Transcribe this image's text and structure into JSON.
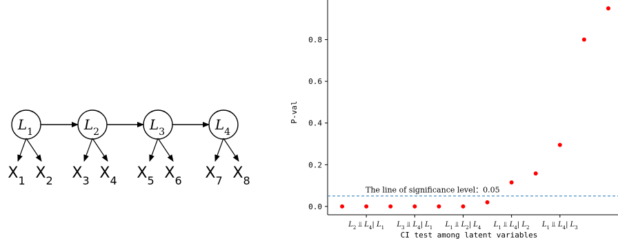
{
  "diagram": {
    "latent_nodes": [
      {
        "label": "L",
        "sub": "1"
      },
      {
        "label": "L",
        "sub": "2"
      },
      {
        "label": "L",
        "sub": "3"
      },
      {
        "label": "L",
        "sub": "4"
      }
    ],
    "observed_nodes": [
      {
        "label": "X",
        "sub": "1"
      },
      {
        "label": "X",
        "sub": "2"
      },
      {
        "label": "X",
        "sub": "3"
      },
      {
        "label": "X",
        "sub": "4"
      },
      {
        "label": "X",
        "sub": "5"
      },
      {
        "label": "X",
        "sub": "6"
      },
      {
        "label": "X",
        "sub": "7"
      },
      {
        "label": "X",
        "sub": "8"
      }
    ]
  },
  "chart_data": {
    "type": "scatter",
    "xlabel": "CI test among latent variables",
    "ylabel": "P-val",
    "ylim": [
      -0.04,
      0.99
    ],
    "yticks": [
      "0.0",
      "0.2",
      "0.4",
      "0.6",
      "0.8"
    ],
    "ytick_values": [
      0.0,
      0.2,
      0.4,
      0.6,
      0.8
    ],
    "xtick_labels": [
      {
        "index": 1,
        "a": "L",
        "as": "2",
        "b": "L",
        "bs": "4",
        "c": "L",
        "cs": "1"
      },
      {
        "index": 3,
        "a": "L",
        "as": "3",
        "b": "L",
        "bs": "4",
        "c": "L",
        "cs": "1"
      },
      {
        "index": 5,
        "a": "L",
        "as": "1",
        "b": "L",
        "bs": "2",
        "c": "L",
        "cs": "4"
      },
      {
        "index": 7,
        "a": "L",
        "as": "1",
        "b": "L",
        "bs": "4",
        "c": "L",
        "cs": "2"
      },
      {
        "index": 9,
        "a": "L",
        "as": "1",
        "b": "L",
        "bs": "4",
        "c": "L",
        "cs": "3"
      }
    ],
    "points": [
      {
        "x": 0,
        "y": 0.0
      },
      {
        "x": 1,
        "y": 0.0
      },
      {
        "x": 2,
        "y": 0.0
      },
      {
        "x": 3,
        "y": 0.0
      },
      {
        "x": 4,
        "y": 0.0
      },
      {
        "x": 5,
        "y": 0.0
      },
      {
        "x": 6,
        "y": 0.02
      },
      {
        "x": 7,
        "y": 0.115
      },
      {
        "x": 8,
        "y": 0.158
      },
      {
        "x": 9,
        "y": 0.295
      },
      {
        "x": 10,
        "y": 0.8
      },
      {
        "x": 11,
        "y": 0.95
      }
    ],
    "point_color": "#ff0000",
    "threshold": {
      "value": 0.05,
      "label": "The line of significance level：0.05",
      "color": "#1f77b4",
      "style": "dashed"
    },
    "grid": false
  }
}
